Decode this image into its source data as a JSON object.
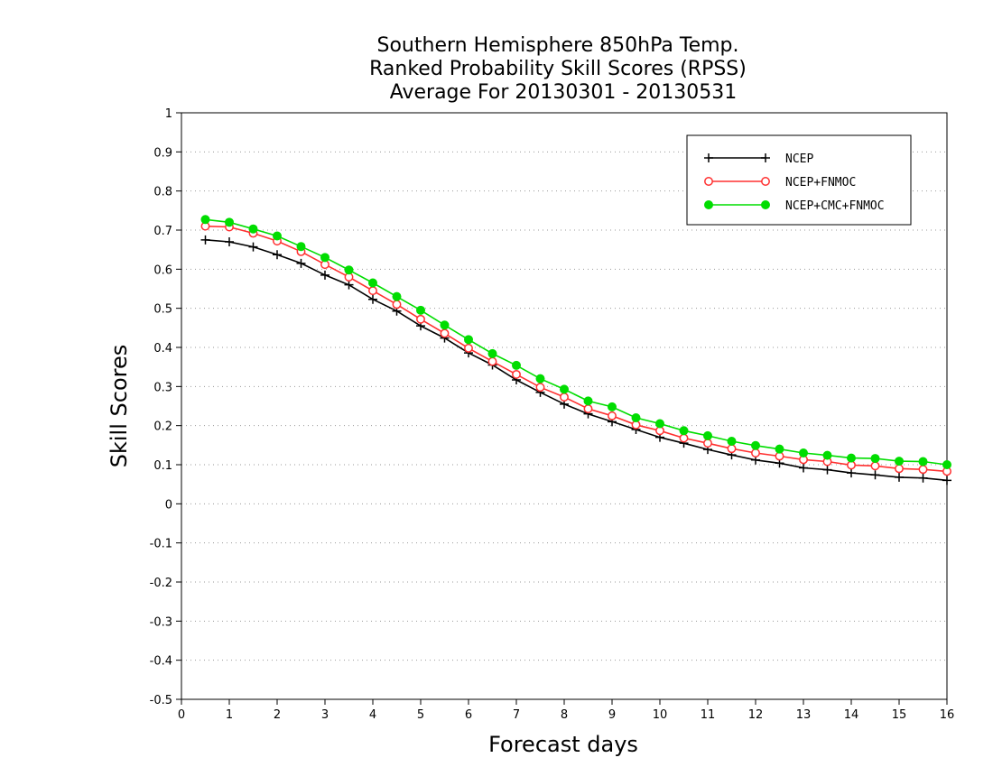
{
  "chart_data": {
    "type": "line",
    "title_lines": [
      "Southern Hemisphere 850hPa Temp.",
      "Ranked Probability Skill Scores (RPSS)",
      "Average For 20130301 - 20130531"
    ],
    "xlabel": "Forecast days",
    "ylabel": "Skill Scores",
    "xlim": [
      0,
      16
    ],
    "ylim": [
      -0.5,
      1
    ],
    "xticks": [
      "0",
      "1",
      "2",
      "3",
      "4",
      "5",
      "6",
      "7",
      "8",
      "9",
      "10",
      "11",
      "12",
      "13",
      "14",
      "15",
      "16"
    ],
    "yticks": [
      "1",
      "0.9",
      "0.8",
      "0.7",
      "0.6",
      "0.5",
      "0.4",
      "0.3",
      "0.2",
      "0.1",
      "0",
      "-0.1",
      "-0.2",
      "-0.3",
      "-0.4",
      "-0.5"
    ],
    "grid": "horizontal dotted",
    "legend_position": "top-right",
    "x": [
      0.5,
      1,
      1.5,
      2,
      2.5,
      3,
      3.5,
      4,
      4.5,
      5,
      5.5,
      6,
      6.5,
      7,
      7.5,
      8,
      8.5,
      9,
      9.5,
      10,
      10.5,
      11,
      11.5,
      12,
      12.5,
      13,
      13.5,
      14,
      14.5,
      15,
      15.5,
      16
    ],
    "series": [
      {
        "name": "NCEP",
        "color": "#000000",
        "marker": "plus",
        "values": [
          0.675,
          0.67,
          0.657,
          0.637,
          0.615,
          0.585,
          0.56,
          0.523,
          0.493,
          0.455,
          0.424,
          0.386,
          0.355,
          0.317,
          0.285,
          0.255,
          0.23,
          0.21,
          0.19,
          0.17,
          0.155,
          0.139,
          0.125,
          0.112,
          0.104,
          0.092,
          0.087,
          0.079,
          0.074,
          0.068,
          0.066,
          0.06
        ]
      },
      {
        "name": "NCEP+FNMOC",
        "color": "#ff3030",
        "marker": "open-circle",
        "values": [
          0.71,
          0.708,
          0.692,
          0.672,
          0.645,
          0.612,
          0.58,
          0.545,
          0.51,
          0.472,
          0.436,
          0.398,
          0.364,
          0.331,
          0.298,
          0.273,
          0.243,
          0.225,
          0.202,
          0.187,
          0.168,
          0.155,
          0.141,
          0.13,
          0.122,
          0.113,
          0.108,
          0.099,
          0.097,
          0.09,
          0.088,
          0.083
        ]
      },
      {
        "name": "NCEP+CMC+FNMOC",
        "color": "#00dd00",
        "marker": "filled-circle",
        "values": [
          0.727,
          0.72,
          0.703,
          0.685,
          0.658,
          0.63,
          0.598,
          0.565,
          0.53,
          0.495,
          0.457,
          0.42,
          0.384,
          0.354,
          0.32,
          0.293,
          0.263,
          0.248,
          0.22,
          0.205,
          0.187,
          0.174,
          0.16,
          0.149,
          0.14,
          0.13,
          0.124,
          0.117,
          0.116,
          0.109,
          0.108,
          0.1
        ]
      }
    ]
  }
}
